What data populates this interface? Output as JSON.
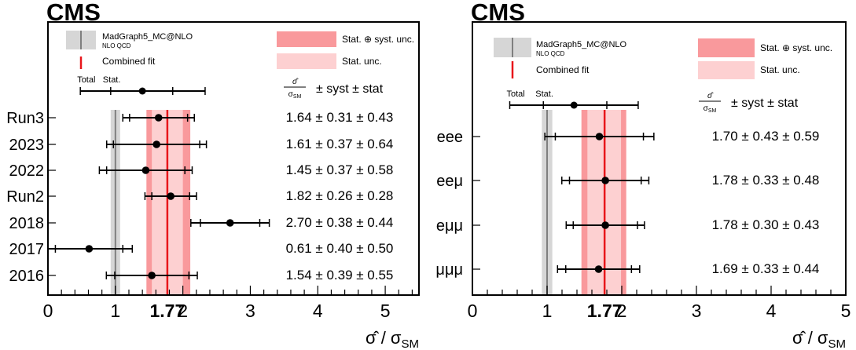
{
  "chart_data": [
    {
      "type": "scatter",
      "experiment_label": "CMS",
      "xlabel_main": "σ̂ / σ",
      "xlabel_sub": "SM",
      "xlim": [
        0,
        5.5
      ],
      "x_ticks": [
        "0",
        "1",
        "1.77",
        "2",
        "3",
        "4",
        "5"
      ],
      "x_tick_values": [
        0,
        1,
        1.77,
        2,
        3,
        4,
        5
      ],
      "bands": {
        "combined_value": 1.77,
        "stat_syst_band": [
          1.46,
          2.11
        ],
        "stat_band": [
          1.54,
          2.0
        ],
        "theory_value": 1.0,
        "theory_band": [
          0.93,
          1.07
        ]
      },
      "legend": {
        "theory": "MadGraph5_MC@NLO",
        "theory_sub": "NLO QCD",
        "fit": "Combined fit",
        "stat_syst": "Stat. ⊕ syst. unc.",
        "stat": "Stat. unc.",
        "key_total": "Total",
        "key_stat": "Stat.",
        "column_head_num": "σ̂",
        "column_head_den_main": "σ",
        "column_head_den_sub": "SM",
        "column_head_rest": "± syst ± stat"
      },
      "legend_errorbar": {
        "center": 1.4,
        "total": [
          0.48,
          2.33
        ],
        "stat": [
          0.93,
          1.85
        ]
      },
      "categories": [
        "Run3",
        "2023",
        "2022",
        "Run2",
        "2018",
        "2017",
        "2016"
      ],
      "points": [
        {
          "label": "Run3",
          "value": 1.64,
          "syst": 0.31,
          "stat": 0.43,
          "text": "1.64 ± 0.31 ± 0.43"
        },
        {
          "label": "2023",
          "value": 1.61,
          "syst": 0.37,
          "stat": 0.64,
          "text": "1.61 ± 0.37 ± 0.64"
        },
        {
          "label": "2022",
          "value": 1.45,
          "syst": 0.37,
          "stat": 0.58,
          "text": "1.45 ± 0.37 ± 0.58"
        },
        {
          "label": "Run2",
          "value": 1.82,
          "syst": 0.26,
          "stat": 0.28,
          "text": "1.82 ± 0.26 ± 0.28"
        },
        {
          "label": "2018",
          "value": 2.7,
          "syst": 0.38,
          "stat": 0.44,
          "text": "2.70 ± 0.38 ± 0.44"
        },
        {
          "label": "2017",
          "value": 0.61,
          "syst": 0.4,
          "stat": 0.5,
          "text": "0.61 ± 0.40 ± 0.50"
        },
        {
          "label": "2016",
          "value": 1.54,
          "syst": 0.39,
          "stat": 0.55,
          "text": "1.54 ± 0.39 ± 0.55"
        }
      ]
    },
    {
      "type": "scatter",
      "experiment_label": "CMS",
      "xlabel_main": "σ̂ / σ",
      "xlabel_sub": "SM",
      "xlim": [
        0,
        5
      ],
      "x_ticks": [
        "0",
        "1",
        "1.77",
        "2",
        "3",
        "4",
        "5"
      ],
      "x_tick_values": [
        0,
        1,
        1.77,
        2,
        3,
        4,
        5
      ],
      "bands": {
        "combined_value": 1.77,
        "stat_syst_band": [
          1.46,
          2.06
        ],
        "stat_band": [
          1.54,
          1.99
        ],
        "theory_value": 1.0,
        "theory_band": [
          0.93,
          1.07
        ]
      },
      "legend": {
        "theory": "MadGraph5_MC@NLO",
        "theory_sub": "NLO QCD",
        "fit": "Combined fit",
        "stat_syst": "Stat. ⊕ syst. unc.",
        "stat": "Stat. unc.",
        "key_total": "Total",
        "key_stat": "Stat.",
        "column_head_num": "σ̂",
        "column_head_den_main": "σ",
        "column_head_den_sub": "SM",
        "column_head_rest": "± syst ± stat"
      },
      "legend_errorbar": {
        "center": 1.36,
        "total": [
          0.5,
          2.22
        ],
        "stat": [
          0.95,
          1.8
        ]
      },
      "categories": [
        "eee",
        "eeμ",
        "eμμ",
        "μμμ"
      ],
      "points": [
        {
          "label": "eee",
          "value": 1.7,
          "syst": 0.43,
          "stat": 0.59,
          "text": "1.70 ± 0.43 ± 0.59"
        },
        {
          "label": "eeμ",
          "value": 1.78,
          "syst": 0.33,
          "stat": 0.48,
          "text": "1.78 ± 0.33 ± 0.48"
        },
        {
          "label": "eμμ",
          "value": 1.78,
          "syst": 0.3,
          "stat": 0.43,
          "text": "1.78 ± 0.30 ± 0.43"
        },
        {
          "label": "μμμ",
          "value": 1.69,
          "syst": 0.33,
          "stat": 0.44,
          "text": "1.69 ± 0.33 ± 0.44"
        }
      ]
    }
  ],
  "colors": {
    "stat_syst_band": "#f9999c",
    "stat_band": "#fdd0d1",
    "fit_line": "#e8161b",
    "theory_band": "#d6d6d6",
    "theory_line": "#7f7f7f",
    "marker": "#000000"
  }
}
